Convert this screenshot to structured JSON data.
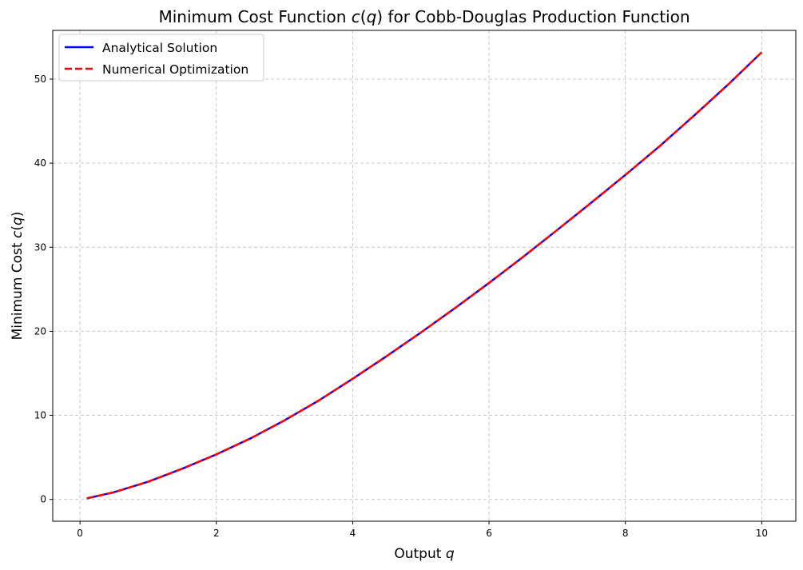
{
  "chart_data": {
    "type": "line",
    "title_parts": [
      "Minimum Cost Function ",
      "c",
      "(",
      "q",
      ") for Cobb-Douglas Production Function"
    ],
    "xlabel_parts": [
      "Output ",
      "q"
    ],
    "ylabel_parts": [
      "Minimum Cost ",
      "c",
      "(",
      "q",
      ")"
    ],
    "xlim": [
      -0.4,
      10.5
    ],
    "ylim": [
      -2.6,
      55.8
    ],
    "xticks": [
      0,
      2,
      4,
      6,
      8,
      10
    ],
    "yticks": [
      0,
      10,
      20,
      30,
      40,
      50
    ],
    "grid": true,
    "legend_position": "upper-left",
    "series": [
      {
        "name": "Analytical Solution",
        "color": "#0000ff",
        "style": "solid",
        "x": [
          0.1,
          0.5,
          1.0,
          1.5,
          2.0,
          2.5,
          3.0,
          3.5,
          4.0,
          4.5,
          5.0,
          5.5,
          6.0,
          6.5,
          7.0,
          7.5,
          8.0,
          8.5,
          9.0,
          9.5,
          10.0
        ],
        "y": [
          0.12,
          0.85,
          2.1,
          3.65,
          5.35,
          7.25,
          9.4,
          11.75,
          14.35,
          17.05,
          19.85,
          22.75,
          25.75,
          28.85,
          32.05,
          35.3,
          38.6,
          42.0,
          45.6,
          49.3,
          53.2
        ]
      },
      {
        "name": "Numerical Optimization",
        "color": "#ff0000",
        "style": "dashed",
        "x": [
          0.1,
          0.5,
          1.0,
          1.5,
          2.0,
          2.5,
          3.0,
          3.5,
          4.0,
          4.5,
          5.0,
          5.5,
          6.0,
          6.5,
          7.0,
          7.5,
          8.0,
          8.5,
          9.0,
          9.5,
          10.0
        ],
        "y": [
          0.12,
          0.85,
          2.1,
          3.65,
          5.35,
          7.25,
          9.4,
          11.75,
          14.35,
          17.05,
          19.85,
          22.75,
          25.75,
          28.85,
          32.05,
          35.3,
          38.6,
          42.0,
          45.6,
          49.3,
          53.2
        ]
      }
    ]
  }
}
